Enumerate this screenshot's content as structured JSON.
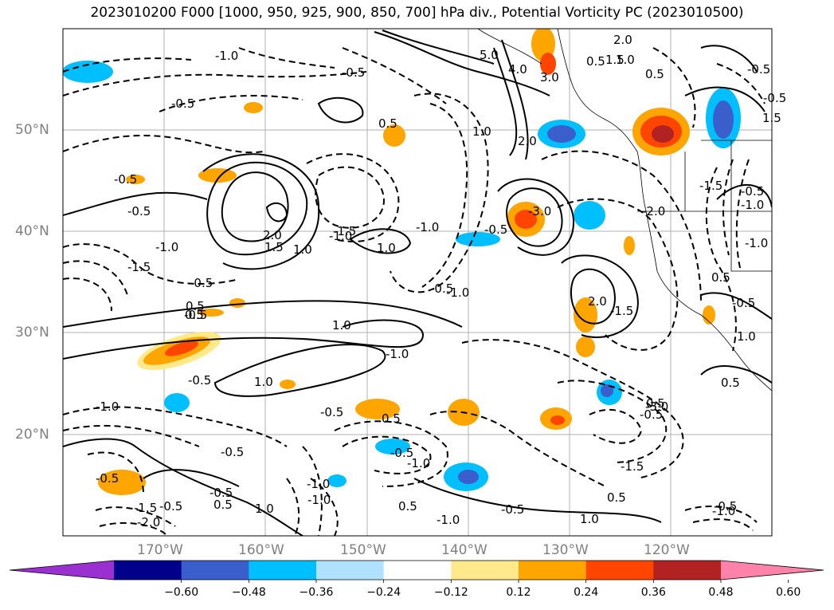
{
  "title": "2023010200 F000 [1000, 950, 925, 900, 850, 700] hPa div., Potential Vorticity PC (2023010500)",
  "lat_labels": [
    "50°N",
    "40°N",
    "30°N",
    "20°N"
  ],
  "lon_labels": [
    "170°W",
    "160°W",
    "150°W",
    "140°W",
    "130°W",
    "120°W"
  ],
  "colorbar": {
    "ticks": [
      "−0.60",
      "−0.48",
      "−0.36",
      "−0.24",
      "−0.12",
      "0.12",
      "0.24",
      "0.36",
      "0.48",
      "0.60"
    ],
    "colors": [
      "#9b30d0",
      "#00008b",
      "#3a5fcd",
      "#00bfff",
      "#b0e2ff",
      "#ffffff",
      "#ffe98a",
      "#ffa500",
      "#ff4500",
      "#b22222",
      "#ff82ab"
    ]
  },
  "contour_labels": [
    "-1.0",
    "-0.5",
    "-0.5",
    "-0.5",
    "0.5",
    "-0.5",
    "0.5",
    "-0.5",
    "-0.5",
    "-1.0",
    "2.0",
    "1.5",
    "1.0",
    "1.0",
    "-1.5",
    "-1.0",
    "-0.5",
    "-0.5",
    "-1.0",
    "-1.5",
    "-0.5",
    "0.5",
    "0.5",
    "-0.5",
    "1.0",
    "-1.0",
    "1.0",
    "-1.0",
    "-0.5",
    "-1.0",
    "0.5",
    "-1.0",
    "0.5",
    "-0.5",
    "-1.0",
    "-1.5",
    "-2.0",
    "-0.5",
    "-0.5",
    "-1.0",
    "-0.5",
    "0.5",
    "1.0",
    "-0.5",
    "-1.0",
    "-1.5",
    "0.5",
    "-0.5",
    "1.0",
    "-0.5",
    "-1.0",
    "-3.0",
    "2.0",
    "-1.5",
    "-3.0",
    "5.0",
    "4.0",
    "3.0",
    "2.0",
    "0.5",
    "1.0",
    "-0.5",
    "2.0",
    "1.5",
    "1.0",
    "0.5",
    "-1.5",
    "-0.5",
    "0.5",
    "-1.0",
    "-2.0",
    "1.5",
    "-0.5",
    "0.5",
    "-1.0",
    "-0.5",
    "1.0"
  ]
}
